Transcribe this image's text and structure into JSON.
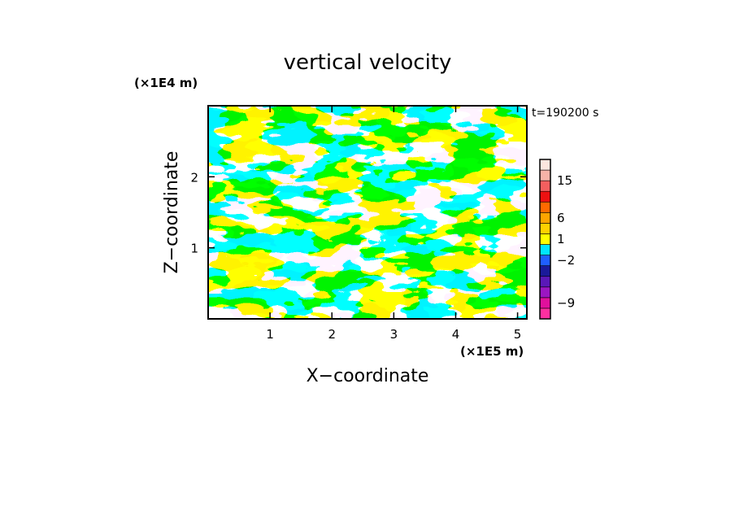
{
  "chart_data": {
    "type": "heatmap",
    "title": "vertical velocity",
    "xlabel": "X−coordinate",
    "ylabel": "Z−coordinate",
    "x_unit": "(×1E5 m)",
    "y_unit": "(×1E4 m)",
    "time_label": "t=190200 s",
    "xlim": [
      0,
      5.15
    ],
    "ylim": [
      0,
      3.0
    ],
    "x_ticks": [
      1,
      2,
      3,
      4,
      5
    ],
    "x_tick_labels": [
      "1",
      "2",
      "3",
      "4",
      "5"
    ],
    "y_ticks": [
      1,
      2
    ],
    "y_tick_labels": [
      "1",
      "2"
    ],
    "field_colors": {
      "positive": "#ffff00",
      "negative": "#00e5ff"
    },
    "colorbar": {
      "tick_labels": [
        "15",
        "6",
        "1",
        "−2",
        "−9"
      ],
      "tick_values": [
        15,
        6,
        1,
        -2,
        -9
      ],
      "levels": [
        {
          "color": "#ff2fa0"
        },
        {
          "color": "#e0109c"
        },
        {
          "color": "#9b16c2"
        },
        {
          "color": "#5a18b8"
        },
        {
          "color": "#1a1a9a"
        },
        {
          "color": "#1f5fff"
        },
        {
          "color": "#00e5ff"
        },
        {
          "color": "#ffff00"
        },
        {
          "color": "#ffd200"
        },
        {
          "color": "#ffa500"
        },
        {
          "color": "#ff6a00"
        },
        {
          "color": "#ee1111"
        },
        {
          "color": "#f45f5f"
        },
        {
          "color": "#f7b3a8"
        },
        {
          "color": "#fde6df"
        }
      ]
    }
  }
}
